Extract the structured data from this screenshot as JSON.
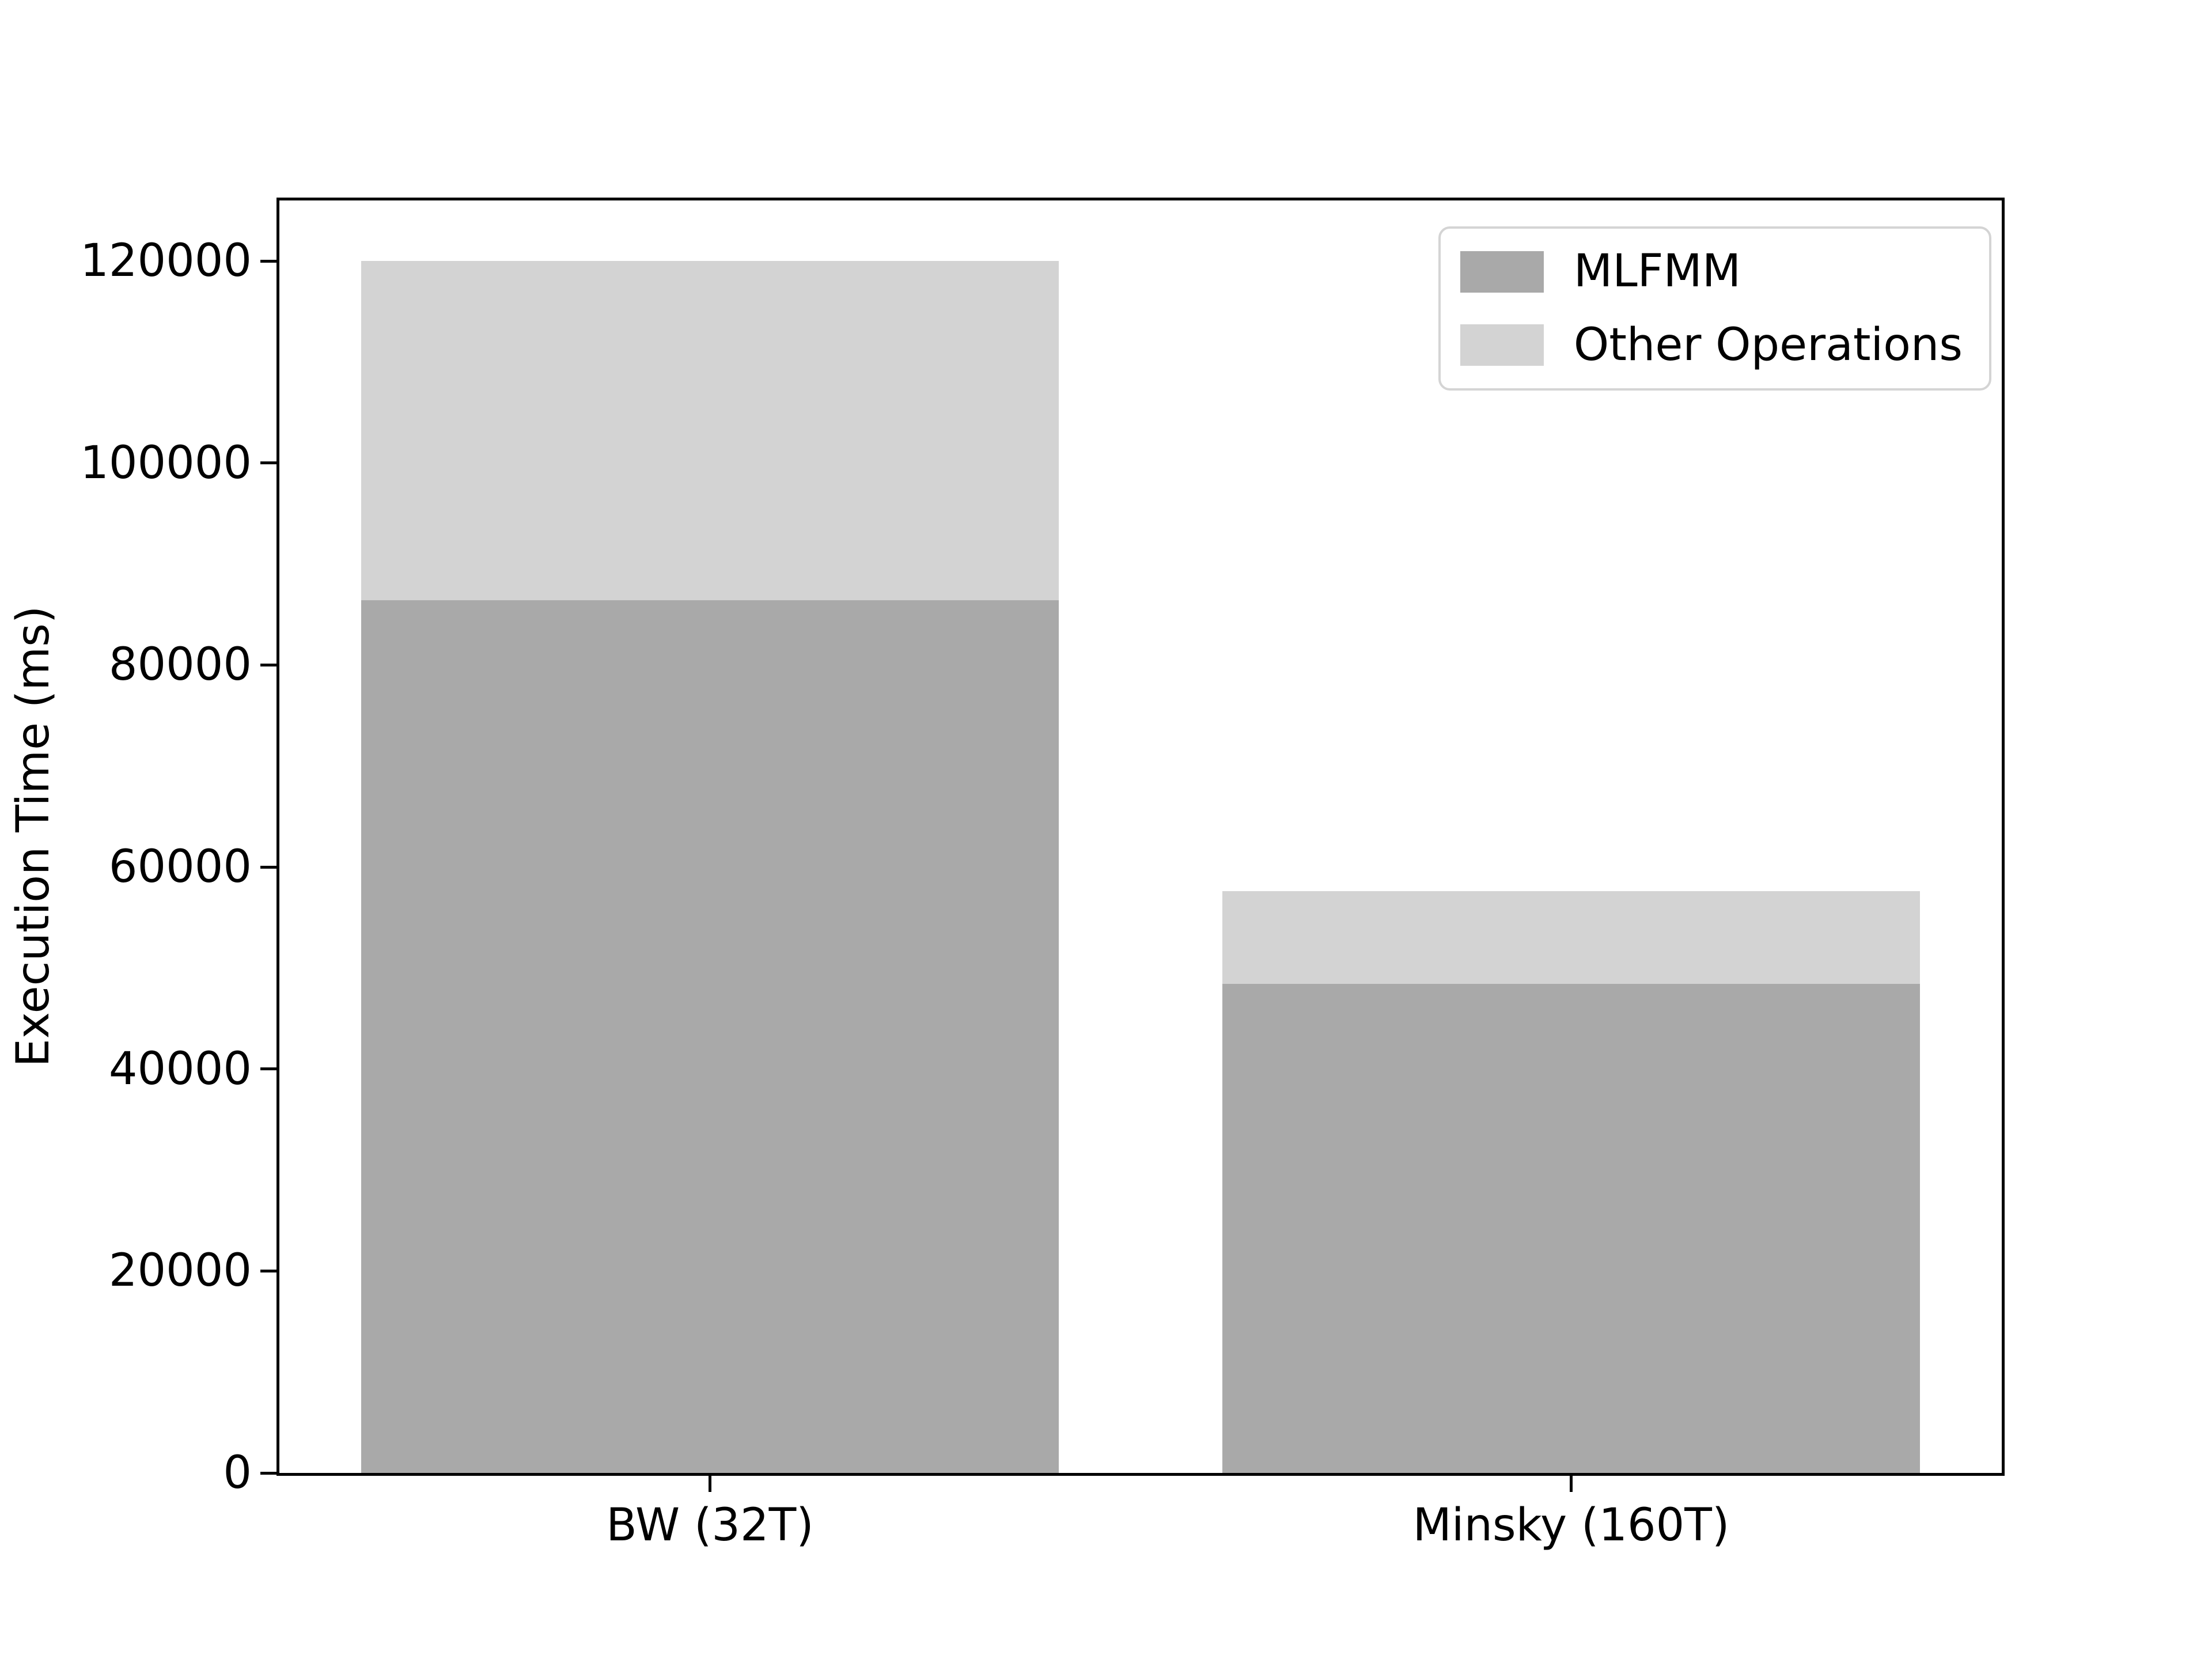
{
  "chart_data": {
    "type": "bar",
    "stacked": true,
    "title": "",
    "xlabel": "",
    "ylabel": "Execution Time (ms)",
    "categories": [
      "BW (32T)",
      "Minsky (160T)"
    ],
    "series": [
      {
        "name": "MLFMM",
        "color": "#a9a9a9",
        "values": [
          86400,
          48400
        ]
      },
      {
        "name": "Other Operations",
        "color": "#d3d3d3",
        "values": [
          33600,
          9200
        ]
      }
    ],
    "stack_totals": [
      120000,
      57600
    ],
    "ylim": [
      0,
      126000
    ],
    "yticks": [
      0,
      20000,
      40000,
      60000,
      80000,
      100000,
      120000
    ],
    "bar_width_fraction": 0.81,
    "grid": false,
    "legend_position": "upper right",
    "axis_color": "#000000",
    "background_color": "#ffffff"
  }
}
